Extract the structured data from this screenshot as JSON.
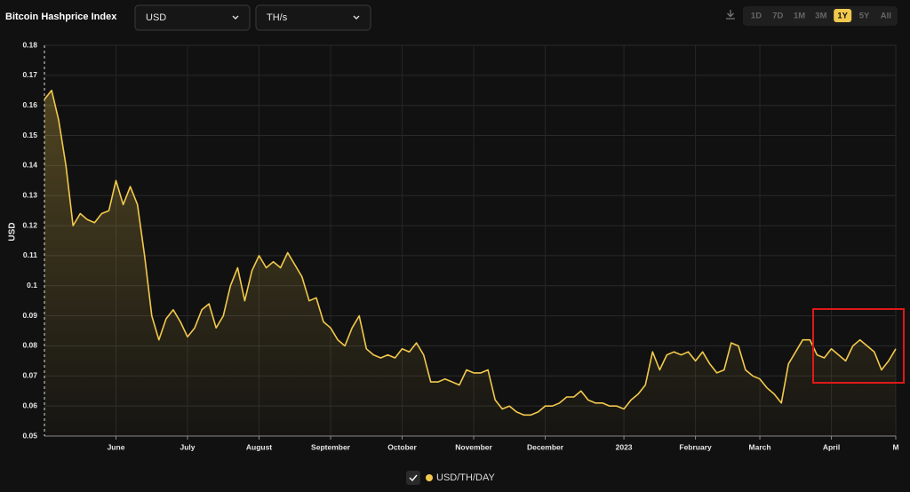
{
  "header": {
    "title": "Bitcoin Hashprice Index",
    "currency": "USD",
    "unit": "TH/s",
    "ranges": [
      "1D",
      "7D",
      "1M",
      "3M",
      "1Y",
      "5Y",
      "All"
    ],
    "active_range": "1Y"
  },
  "chart_data": {
    "type": "line",
    "ylabel": "USD",
    "categories": [
      null,
      null,
      null,
      null,
      null,
      null,
      null,
      null,
      null,
      null,
      "June",
      null,
      null,
      null,
      null,
      null,
      null,
      null,
      null,
      null,
      "July",
      null,
      null,
      null,
      null,
      null,
      null,
      null,
      null,
      null,
      "August",
      null,
      null,
      null,
      null,
      null,
      null,
      null,
      null,
      null,
      "September",
      null,
      null,
      null,
      null,
      null,
      null,
      null,
      null,
      null,
      "October",
      null,
      null,
      null,
      null,
      null,
      null,
      null,
      null,
      null,
      "November",
      null,
      null,
      null,
      null,
      null,
      null,
      null,
      null,
      null,
      "December",
      null,
      null,
      null,
      null,
      null,
      null,
      null,
      null,
      null,
      null,
      "2023",
      null,
      null,
      null,
      null,
      null,
      null,
      null,
      null,
      null,
      "February",
      null,
      null,
      null,
      null,
      null,
      null,
      null,
      null,
      "March",
      null,
      null,
      null,
      null,
      null,
      null,
      null,
      null,
      null,
      "April",
      null,
      null,
      null,
      null,
      null,
      null,
      null,
      null,
      "M"
    ],
    "series": [
      {
        "name": "USD/TH/DAY",
        "color": "#f2c94c",
        "values": [
          0.162,
          0.165,
          0.155,
          0.14,
          0.12,
          0.124,
          0.122,
          0.121,
          0.124,
          0.125,
          0.135,
          0.127,
          0.133,
          0.127,
          0.11,
          0.09,
          0.082,
          0.089,
          0.092,
          0.088,
          0.083,
          0.086,
          0.092,
          0.094,
          0.086,
          0.09,
          0.1,
          0.106,
          0.095,
          0.105,
          0.11,
          0.106,
          0.108,
          0.106,
          0.111,
          0.107,
          0.103,
          0.095,
          0.096,
          0.088,
          0.086,
          0.082,
          0.08,
          0.086,
          0.09,
          0.079,
          0.077,
          0.076,
          0.077,
          0.076,
          0.079,
          0.078,
          0.081,
          0.077,
          0.068,
          0.068,
          0.069,
          0.068,
          0.067,
          0.072,
          0.071,
          0.071,
          0.072,
          0.062,
          0.059,
          0.06,
          0.058,
          0.057,
          0.057,
          0.058,
          0.06,
          0.06,
          0.061,
          0.063,
          0.063,
          0.065,
          0.062,
          0.061,
          0.061,
          0.06,
          0.06,
          0.059,
          0.062,
          0.064,
          0.067,
          0.078,
          0.072,
          0.077,
          0.078,
          0.077,
          0.078,
          0.075,
          0.078,
          0.074,
          0.071,
          0.072,
          0.081,
          0.08,
          0.072,
          0.07,
          0.069,
          0.066,
          0.064,
          0.061,
          0.074,
          0.078,
          0.082,
          0.082,
          0.077,
          0.076,
          0.079,
          0.077,
          0.075,
          0.08,
          0.082,
          0.08,
          0.078,
          0.072,
          0.075,
          0.079
        ]
      }
    ],
    "ylim": [
      0.05,
      0.18
    ],
    "yticks": [
      0.05,
      0.06,
      0.07,
      0.08,
      0.09,
      0.1,
      0.11,
      0.12,
      0.13,
      0.14,
      0.15,
      0.16,
      0.17,
      0.18
    ],
    "grid": true
  }
}
